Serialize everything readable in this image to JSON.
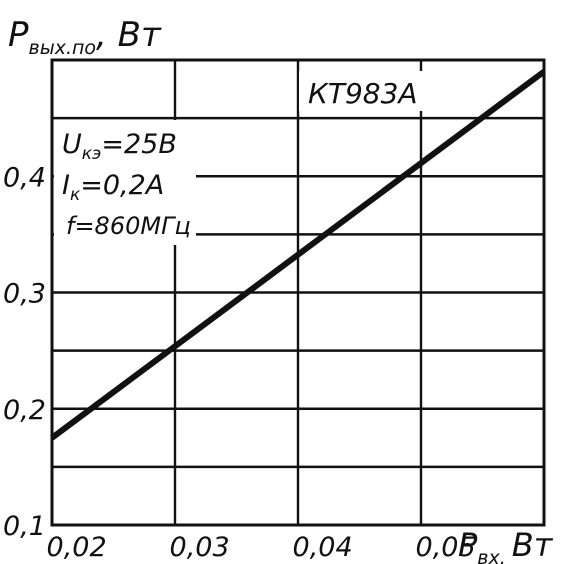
{
  "chart_data": {
    "type": "line",
    "title": "",
    "ylabel_main": "P",
    "ylabel_sub": "вых.по",
    "ylabel_unit": ", Вт",
    "xlabel_main": "P",
    "xlabel_sub": "вх.",
    "xlabel_unit": "Вт",
    "xlim": [
      0.018,
      0.058
    ],
    "ylim": [
      0.1,
      0.5
    ],
    "x_ticks": [
      {
        "value": 0.02,
        "label": "0,02"
      },
      {
        "value": 0.03,
        "label": "0,03"
      },
      {
        "value": 0.04,
        "label": "0,04"
      },
      {
        "value": 0.05,
        "label": "0,05"
      }
    ],
    "y_ticks": [
      {
        "value": 0.1,
        "label": "0,1"
      },
      {
        "value": 0.2,
        "label": "0,2"
      },
      {
        "value": 0.3,
        "label": "0,3"
      },
      {
        "value": 0.4,
        "label": "0,4"
      }
    ],
    "x_grid": [
      0.018,
      0.028,
      0.038,
      0.048,
      0.058
    ],
    "y_grid": [
      0.15,
      0.2,
      0.25,
      0.3,
      0.35,
      0.4,
      0.45
    ],
    "grid": true,
    "series": [
      {
        "name": "",
        "x": [
          0.018,
          0.058
        ],
        "y": [
          0.175,
          0.49
        ]
      }
    ],
    "annotations": {
      "device": "КТ983А",
      "conditions": [
        {
          "main": "U",
          "sub": "кэ",
          "rest": "=25В"
        },
        {
          "main": "I",
          "sub": "к",
          "rest": "=0,2А"
        },
        {
          "main": "f=860МГц",
          "sub": "",
          "rest": ""
        }
      ]
    }
  }
}
